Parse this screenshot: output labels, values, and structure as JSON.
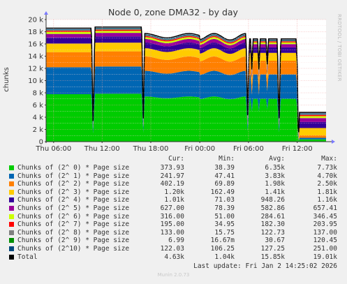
{
  "chart_data": {
    "type": "area",
    "title": "Node 0, zone DMA32 - by day",
    "ylabel": "chunks",
    "ylim": [
      0,
      20000
    ],
    "y_ticks": [
      "0",
      "2 k",
      "4 k",
      "6 k",
      "8 k",
      "10 k",
      "12 k",
      "14 k",
      "16 k",
      "18 k",
      "20 k"
    ],
    "x_ticks": [
      "Thu 06:00",
      "Thu 12:00",
      "Thu 18:00",
      "Fri 00:00",
      "Fri 06:00",
      "Fri 12:00"
    ],
    "grid": true,
    "stacked": true,
    "series": [
      {
        "name": "Chunks of (2^ 0) * Page size",
        "color": "#00cc00",
        "cur": "373.93",
        "min": "38.39",
        "avg": "6.35k",
        "max": "7.73k"
      },
      {
        "name": "Chunks of (2^ 1) * Page size",
        "color": "#0066b3",
        "cur": "241.97",
        "min": "47.41",
        "avg": "3.83k",
        "max": "4.70k"
      },
      {
        "name": "Chunks of (2^ 2) * Page size",
        "color": "#ff8000",
        "cur": "402.19",
        "min": "69.89",
        "avg": "1.98k",
        "max": "2.50k"
      },
      {
        "name": "Chunks of (2^ 3) * Page size",
        "color": "#ffcc00",
        "cur": "1.20k",
        "min": "162.49",
        "avg": "1.41k",
        "max": "1.81k"
      },
      {
        "name": "Chunks of (2^ 4) * Page size",
        "color": "#330099",
        "cur": "1.01k",
        "min": "71.03",
        "avg": "948.26",
        "max": "1.16k"
      },
      {
        "name": "Chunks of (2^ 5) * Page size",
        "color": "#990099",
        "cur": "627.00",
        "min": "78.39",
        "avg": "582.86",
        "max": "657.41"
      },
      {
        "name": "Chunks of (2^ 6) * Page size",
        "color": "#ccff00",
        "cur": "316.00",
        "min": "51.00",
        "avg": "284.61",
        "max": "346.45"
      },
      {
        "name": "Chunks of (2^ 7) * Page size",
        "color": "#ff0000",
        "cur": "195.00",
        "min": "34.95",
        "avg": "182.30",
        "max": "203.95"
      },
      {
        "name": "Chunks of (2^ 8) * Page size",
        "color": "#808080",
        "cur": "133.00",
        "min": "15.75",
        "avg": "122.73",
        "max": "137.00"
      },
      {
        "name": "Chunks of (2^ 9) * Page size",
        "color": "#008f00",
        "cur": "6.99",
        "min": "16.67m",
        "avg": "30.67",
        "max": "120.45"
      },
      {
        "name": "Chunks of (2^10) * Page size",
        "color": "#00487d",
        "cur": "122.03",
        "min": "106.25",
        "avg": "127.25",
        "max": "251.00"
      },
      {
        "name": "Total",
        "color": "#000000",
        "cur": "4.63k",
        "min": "1.04k",
        "avg": "15.85k",
        "max": "19.01k"
      }
    ]
  },
  "legend": {
    "cur": "Cur:",
    "min": "Min:",
    "avg": "Avg:",
    "max": "Max:"
  },
  "last_update": "Last update: Fri Jan  2 14:25:02 2026",
  "brand": "Munin 2.0.73",
  "side_text": "RRDTOOL / TOBI OETIKER"
}
